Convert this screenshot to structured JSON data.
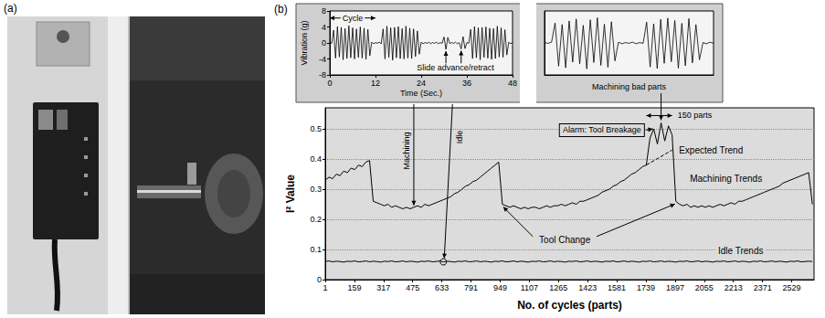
{
  "photo_panel": {
    "label": "(a)"
  },
  "figure_label": "(b)",
  "chart_data": [
    {
      "type": "line",
      "xlabel": "Time (Sec.)",
      "ylabel": "Vibration (g)",
      "marker": "none",
      "xlim": [
        0,
        48
      ],
      "xticks": [
        0,
        12,
        24,
        36,
        48
      ],
      "ylim": [
        -8,
        8
      ],
      "yticks": [
        -8,
        -4,
        0,
        4,
        8
      ],
      "annotations": [
        "Cycle",
        "Slide advance/retract"
      ],
      "x": [
        0,
        0.5,
        1,
        1.5,
        2,
        2.5,
        3,
        3.5,
        4,
        4.5,
        5,
        5.5,
        6,
        6.5,
        7,
        7.5,
        8,
        8.5,
        9,
        9.5,
        10,
        10.5,
        11,
        11.5,
        12,
        12.5,
        13,
        13.5,
        14,
        14.5,
        15,
        15.5,
        16,
        16.5,
        17,
        17.5,
        18,
        18.5,
        19,
        19.5,
        20,
        20.5,
        21,
        21.5,
        22,
        22.5,
        23,
        23.5,
        24,
        24.5,
        25,
        25.5,
        26,
        26.5,
        27,
        27.5,
        28,
        28.5,
        29,
        29.5,
        30,
        30.5,
        31,
        31.5,
        32,
        32.5,
        33,
        33.5,
        34,
        34.5,
        35,
        35.5,
        36,
        36.5,
        37,
        37.5,
        38,
        38.5,
        39,
        39.5,
        40,
        40.5,
        41,
        41.5,
        42,
        42.5,
        43,
        43.5,
        44,
        44.5,
        45,
        45.5,
        46,
        46.5,
        47,
        47.5,
        48
      ],
      "series": [
        {
          "color": "#000000",
          "values": [
            0.1,
            -0.1,
            3.2,
            -3.8,
            4.1,
            -3.5,
            3.9,
            -4.2,
            3.6,
            -3.9,
            4.3,
            -3.7,
            3.8,
            -4.0,
            3.5,
            -3.6,
            4.0,
            -3.8,
            3.7,
            -4.1,
            3.4,
            -3.2,
            0.2,
            -0.2,
            0.1,
            -0.1,
            0.2,
            -0.2,
            3.5,
            -4.0,
            4.2,
            -3.6,
            3.8,
            -4.3,
            3.9,
            -3.7,
            4.1,
            -3.9,
            3.6,
            -4.0,
            4.2,
            -3.8,
            3.7,
            -3.9,
            3.5,
            -3.4,
            3.0,
            -2.8,
            0.2,
            -0.2,
            0.1,
            -0.1,
            0.2,
            -0.2,
            0.1,
            -0.1,
            0.2,
            -0.2,
            0.1,
            -0.1,
            1.5,
            -1.6,
            1.4,
            -0.1,
            0.1,
            -0.1,
            0.2,
            -0.2,
            0.1,
            -1.5,
            1.6,
            -1.4,
            0.1,
            -0.1,
            3.4,
            -3.9,
            4.1,
            -3.7,
            3.8,
            -4.2,
            3.9,
            -3.6,
            4.0,
            -3.8,
            3.7,
            -4.1,
            3.6,
            -3.9,
            4.2,
            -3.5,
            3.8,
            -3.6,
            3.3,
            -3.0,
            0.2,
            -0.2,
            0.1
          ]
        }
      ]
    },
    {
      "type": "line",
      "marker": "none",
      "tick_labels": false,
      "xlim": [
        0,
        24
      ],
      "ylim": [
        -8,
        8
      ],
      "annotations": [
        "Machining bad parts"
      ],
      "x": [
        0,
        0.5,
        1,
        1.5,
        2,
        2.5,
        3,
        3.5,
        4,
        4.5,
        5,
        5.5,
        6,
        6.5,
        7,
        7.5,
        8,
        8.5,
        9,
        9.5,
        10,
        10.5,
        11,
        11.5,
        12,
        12.5,
        13,
        13.5,
        14,
        14.5,
        15,
        15.5,
        16,
        16.5,
        17,
        17.5,
        18,
        18.5,
        19,
        19.5,
        20,
        20.5,
        21,
        21.5,
        22,
        22.5,
        23,
        23.5,
        24
      ],
      "series": [
        {
          "color": "#000000",
          "values": [
            0.1,
            -0.1,
            0.2,
            5.0,
            -5.8,
            4.6,
            -6.2,
            5.5,
            -4.8,
            6.0,
            -5.2,
            4.4,
            -6.5,
            5.8,
            -4.9,
            6.3,
            -5.6,
            4.7,
            -6.1,
            5.3,
            -4.5,
            0.2,
            -0.2,
            0.1,
            -0.1,
            0.2,
            -0.2,
            0.1,
            -0.1,
            5.2,
            -6.0,
            4.8,
            -6.4,
            5.9,
            -5.1,
            6.2,
            -4.7,
            5.6,
            -6.3,
            4.9,
            -5.7,
            6.1,
            -5.0,
            4.6,
            -4.2,
            0.1,
            -0.2,
            0.2,
            -0.1
          ]
        }
      ]
    },
    {
      "type": "line",
      "xlabel": "No. of cycles (parts)",
      "ylabel": "I² Value",
      "marker": "none",
      "grid": true,
      "xlim": [
        1,
        2650
      ],
      "xticks": [
        1,
        159,
        317,
        475,
        633,
        791,
        949,
        1107,
        1265,
        1423,
        1581,
        1739,
        1897,
        2055,
        2213,
        2371,
        2529
      ],
      "ylim": [
        0,
        0.57
      ],
      "yticks": [
        0,
        0.1,
        0.2,
        0.3,
        0.4,
        0.5
      ],
      "annotations": [
        "Idle",
        "Machining",
        "Tool Change",
        "Alarm: Tool Breakage",
        "150 parts"
      ],
      "x": [
        1,
        21,
        41,
        61,
        81,
        101,
        121,
        141,
        161,
        181,
        201,
        221,
        241,
        261,
        281,
        301,
        321,
        341,
        361,
        381,
        401,
        421,
        441,
        461,
        481,
        501,
        521,
        541,
        561,
        581,
        601,
        621,
        641,
        661,
        681,
        701,
        721,
        741,
        761,
        781,
        801,
        821,
        841,
        861,
        881,
        901,
        921,
        941,
        961,
        981,
        1001,
        1021,
        1041,
        1061,
        1081,
        1101,
        1121,
        1141,
        1161,
        1181,
        1201,
        1221,
        1241,
        1261,
        1281,
        1301,
        1321,
        1341,
        1361,
        1381,
        1401,
        1421,
        1441,
        1461,
        1481,
        1501,
        1521,
        1541,
        1561,
        1581,
        1601,
        1621,
        1641,
        1661,
        1681,
        1701,
        1721,
        1741,
        1761,
        1781,
        1801,
        1821,
        1841,
        1861,
        1881,
        1901,
        1921,
        1941,
        1961,
        1981,
        2001,
        2021,
        2041,
        2061,
        2081,
        2101,
        2121,
        2141,
        2161,
        2181,
        2201,
        2221,
        2241,
        2261,
        2281,
        2301,
        2321,
        2341,
        2361,
        2381,
        2401,
        2421,
        2441,
        2461,
        2481,
        2501,
        2521,
        2541,
        2561,
        2581,
        2601,
        2621,
        2641
      ],
      "series": [
        {
          "name": "Machining Trends",
          "color": "#000000",
          "values": [
            0.33,
            0.34,
            0.335,
            0.35,
            0.345,
            0.36,
            0.355,
            0.37,
            0.365,
            0.38,
            0.375,
            0.39,
            0.395,
            0.26,
            0.255,
            0.25,
            0.245,
            0.25,
            0.24,
            0.245,
            0.24,
            0.235,
            0.24,
            0.235,
            0.24,
            0.245,
            0.24,
            0.25,
            0.245,
            0.25,
            0.255,
            0.26,
            0.265,
            0.27,
            0.275,
            0.285,
            0.29,
            0.3,
            0.31,
            0.315,
            0.325,
            0.33,
            0.34,
            0.35,
            0.36,
            0.37,
            0.38,
            0.39,
            0.25,
            0.245,
            0.24,
            0.245,
            0.24,
            0.235,
            0.24,
            0.235,
            0.24,
            0.24,
            0.235,
            0.24,
            0.245,
            0.24,
            0.245,
            0.245,
            0.25,
            0.245,
            0.25,
            0.255,
            0.25,
            0.26,
            0.26,
            0.265,
            0.27,
            0.275,
            0.28,
            0.29,
            0.295,
            0.3,
            0.31,
            0.315,
            0.325,
            0.33,
            0.34,
            0.35,
            0.355,
            0.365,
            0.375,
            0.38,
            0.47,
            0.5,
            0.45,
            0.52,
            0.46,
            0.51,
            0.48,
            0.26,
            0.25,
            0.245,
            0.25,
            0.24,
            0.245,
            0.24,
            0.245,
            0.24,
            0.245,
            0.24,
            0.245,
            0.25,
            0.245,
            0.25,
            0.255,
            0.25,
            0.26,
            0.26,
            0.265,
            0.27,
            0.275,
            0.28,
            0.285,
            0.29,
            0.295,
            0.3,
            0.305,
            0.31,
            0.32,
            0.325,
            0.33,
            0.335,
            0.34,
            0.345,
            0.35,
            0.355,
            0.25
          ]
        },
        {
          "name": "Idle Trends",
          "color": "#000000",
          "values": [
            0.06,
            0.062,
            0.059,
            0.061,
            0.06,
            0.058,
            0.061,
            0.06,
            0.062,
            0.059,
            0.06,
            0.062,
            0.059,
            0.061,
            0.06,
            0.058,
            0.061,
            0.06,
            0.062,
            0.059,
            0.06,
            0.062,
            0.059,
            0.061,
            0.06,
            0.058,
            0.061,
            0.06,
            0.062,
            0.059,
            0.06,
            0.062,
            0.059,
            0.061,
            0.06,
            0.058,
            0.061,
            0.06,
            0.062,
            0.059,
            0.06,
            0.062,
            0.059,
            0.061,
            0.06,
            0.058,
            0.061,
            0.06,
            0.062,
            0.059,
            0.06,
            0.062,
            0.059,
            0.061,
            0.06,
            0.058,
            0.061,
            0.06,
            0.062,
            0.059,
            0.06,
            0.062,
            0.059,
            0.061,
            0.06,
            0.058,
            0.061,
            0.06,
            0.062,
            0.059,
            0.06,
            0.062,
            0.059,
            0.061,
            0.06,
            0.058,
            0.061,
            0.06,
            0.062,
            0.059,
            0.06,
            0.062,
            0.059,
            0.061,
            0.06,
            0.058,
            0.061,
            0.06,
            0.062,
            0.059,
            0.06,
            0.062,
            0.059,
            0.061,
            0.06,
            0.058,
            0.061,
            0.06,
            0.062,
            0.059,
            0.06,
            0.062,
            0.059,
            0.061,
            0.06,
            0.058,
            0.061,
            0.06,
            0.062,
            0.059,
            0.06,
            0.062,
            0.059,
            0.061,
            0.06,
            0.058,
            0.061,
            0.06,
            0.062,
            0.059,
            0.06,
            0.062,
            0.059,
            0.061,
            0.06,
            0.058,
            0.061,
            0.06,
            0.062,
            0.059,
            0.06,
            0.061,
            0.06
          ]
        },
        {
          "name": "Expected Trend",
          "color": "#000000",
          "line_style": "dashed",
          "x": [
            1741,
            1881
          ],
          "values": [
            0.38,
            0.43
          ]
        }
      ]
    }
  ]
}
